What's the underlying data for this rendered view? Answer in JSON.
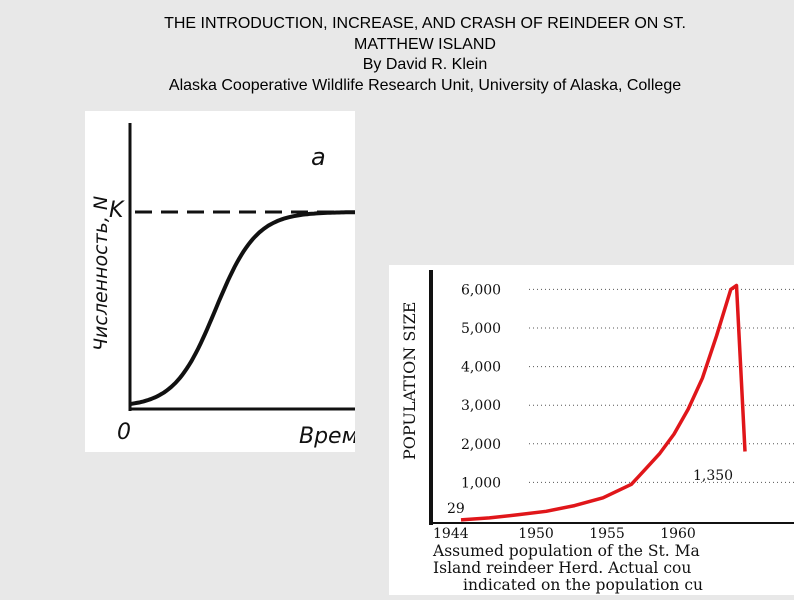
{
  "header": {
    "title_line1": "THE INTRODUCTION, INCREASE, AND CRASH OF REINDEER ON ST.",
    "title_line2": "MATTHEW ISLAND",
    "byline": "By David R. Klein",
    "affiliation": "Alaska Cooperative Wildlife Research Unit, University of Alaska, College"
  },
  "figure_a": {
    "panel_label": "a",
    "y_axis_label": "Численность, N",
    "k_label": "K",
    "origin_label": "0",
    "x_axis_label": "Врем"
  },
  "chart_data": [
    {
      "type": "line",
      "title": "",
      "xlabel": "Врем",
      "ylabel": "Численность, N",
      "annotations": [
        "a",
        "K",
        "0"
      ],
      "series": [
        {
          "x": [
            0,
            0.1,
            0.2,
            0.3,
            0.4,
            0.5,
            0.6,
            0.7,
            0.8,
            0.9,
            1.0
          ],
          "values": [
            0.02,
            0.06,
            0.16,
            0.38,
            0.68,
            0.87,
            0.95,
            0.985,
            0.995,
            1.0,
            1.0
          ]
        }
      ],
      "k_level": 1.0,
      "grid": false
    },
    {
      "type": "line",
      "title": "",
      "xlabel": "",
      "ylabel": "POPULATION SIZE",
      "x_ticks": [
        "1944",
        "1950",
        "1955",
        "1960"
      ],
      "y_ticks": [
        "1,000",
        "2,000",
        "3,000",
        "4,000",
        "5,000",
        "6,000"
      ],
      "ylim": [
        0,
        6500
      ],
      "xlim": [
        1944,
        1966
      ],
      "annotations": [
        "29",
        "1,350"
      ],
      "caption_lines": [
        "Assumed population of the St. Ma",
        "Island reindeer Herd. Actual cou",
        "indicated on the population cu"
      ],
      "line_color": "#e0161a",
      "series": [
        {
          "x": [
            1944,
            1946,
            1948,
            1950,
            1952,
            1954,
            1956,
            1957,
            1958,
            1959,
            1960,
            1961,
            1962,
            1963,
            1963.4,
            1964
          ],
          "values": [
            29,
            80,
            160,
            250,
            400,
            600,
            950,
            1350,
            1750,
            2250,
            2900,
            3700,
            4800,
            6000,
            6100,
            1800
          ]
        }
      ]
    }
  ]
}
